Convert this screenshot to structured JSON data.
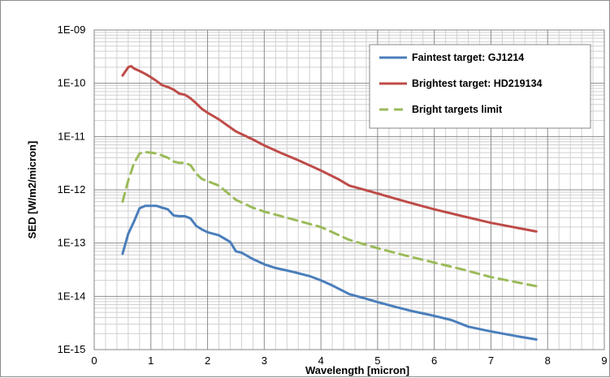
{
  "chart_data": {
    "type": "line",
    "title": "",
    "xlabel": "Wavelength [micron]",
    "ylabel": "SED [W/m2/micron]",
    "xlim": [
      0,
      9
    ],
    "ylim": [
      1e-15,
      1e-09
    ],
    "yscale": "log",
    "grid": true,
    "legend_position": "top-right",
    "x_ticks": [
      "0",
      "1",
      "2",
      "3",
      "4",
      "5",
      "6",
      "7",
      "8",
      "9"
    ],
    "y_ticks": [
      "1E-15",
      "1E-14",
      "1E-13",
      "1E-12",
      "1E-11",
      "1E-10",
      "1E-09"
    ],
    "series": [
      {
        "name": "Faintest target: GJ1214",
        "color": "#4a7ebb",
        "dash": "solid",
        "x": [
          0.5,
          0.6,
          0.7,
          0.8,
          0.9,
          1.0,
          1.1,
          1.2,
          1.3,
          1.4,
          1.5,
          1.6,
          1.7,
          1.8,
          1.9,
          2.0,
          2.2,
          2.4,
          2.5,
          2.6,
          2.8,
          3.0,
          3.2,
          3.5,
          3.8,
          4.0,
          4.2,
          4.5,
          4.8,
          5.0,
          5.3,
          5.6,
          6.0,
          6.3,
          6.6,
          6.9,
          7.2,
          7.5,
          7.8
        ],
        "y": [
          6.3e-14,
          1.5e-13,
          2.5e-13,
          4.5e-13,
          5e-13,
          5e-13,
          5e-13,
          4.6e-13,
          4.3e-13,
          3.3e-13,
          3.2e-13,
          3.2e-13,
          2.9e-13,
          2.1e-13,
          1.8e-13,
          1.6e-13,
          1.4e-13,
          1.05e-13,
          7e-14,
          6.6e-14,
          5e-14,
          4e-14,
          3.4e-14,
          2.9e-14,
          2.4e-14,
          2e-14,
          1.6e-14,
          1.1e-14,
          9e-15,
          7.8e-15,
          6.4e-15,
          5.3e-15,
          4.3e-15,
          3.6e-15,
          2.7e-15,
          2.3e-15,
          2e-15,
          1.75e-15,
          1.55e-15
        ]
      },
      {
        "name": "Brightest target: HD219134",
        "color": "#be4b48",
        "dash": "solid",
        "x": [
          0.5,
          0.6,
          0.65,
          0.7,
          0.8,
          0.9,
          1.0,
          1.1,
          1.2,
          1.3,
          1.4,
          1.5,
          1.6,
          1.7,
          1.8,
          1.9,
          2.0,
          2.2,
          2.5,
          2.8,
          3.0,
          3.3,
          3.6,
          4.0,
          4.3,
          4.5,
          4.8,
          5.0,
          5.5,
          6.0,
          6.5,
          7.0,
          7.5,
          7.8
        ],
        "y": [
          1.4e-10,
          2e-10,
          2.1e-10,
          1.9e-10,
          1.7e-10,
          1.5e-10,
          1.3e-10,
          1.1e-10,
          9.2e-11,
          8.5e-11,
          7.6e-11,
          6.4e-11,
          6.1e-11,
          5.2e-11,
          4.2e-11,
          3.3e-11,
          2.8e-11,
          2.1e-11,
          1.25e-11,
          8.8e-12,
          6.8e-12,
          4.9e-12,
          3.6e-12,
          2.3e-12,
          1.6e-12,
          1.2e-12,
          9.8e-13,
          8.5e-13,
          6e-13,
          4.3e-13,
          3.2e-13,
          2.4e-13,
          1.9e-13,
          1.65e-13
        ]
      },
      {
        "name": "Bright targets limit",
        "color": "#9bbb59",
        "dash": "dashed",
        "x": [
          0.5,
          0.6,
          0.7,
          0.8,
          0.9,
          1.0,
          1.1,
          1.2,
          1.3,
          1.4,
          1.5,
          1.6,
          1.7,
          1.8,
          1.9,
          2.0,
          2.2,
          2.5,
          2.8,
          3.0,
          3.5,
          4.0,
          4.5,
          5.0,
          5.5,
          6.0,
          6.5,
          7.0,
          7.5,
          7.8
        ],
        "y": [
          6e-13,
          1.5e-12,
          3.1e-12,
          4.8e-12,
          5.1e-12,
          5e-12,
          4.8e-12,
          4.4e-12,
          4e-12,
          3.4e-12,
          3.2e-12,
          3.2e-12,
          2.9e-12,
          2e-12,
          1.6e-12,
          1.45e-12,
          1.2e-12,
          6.5e-13,
          4.6e-13,
          3.9e-13,
          2.8e-13,
          2e-13,
          1.15e-13,
          8e-14,
          5.8e-14,
          4.3e-14,
          3.2e-14,
          2.3e-14,
          1.8e-14,
          1.55e-14
        ]
      }
    ]
  }
}
